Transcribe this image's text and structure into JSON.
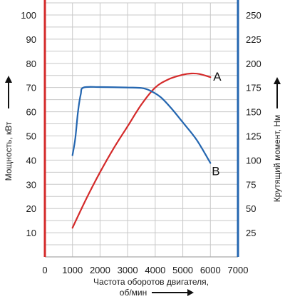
{
  "chart_data": {
    "type": "line",
    "xlabel_line1": "Частота оборотов двигателя,",
    "xlabel_line2": "об/мин",
    "ylabel_left": "Мощность, кВт",
    "ylabel_right": "Крутящий момент, Нм",
    "x_ticks": [
      "0",
      "1000",
      "2000",
      "3000",
      "4000",
      "5000",
      "6000",
      "7000"
    ],
    "y_left_ticks": [
      "10",
      "20",
      "30",
      "40",
      "50",
      "60",
      "70",
      "80",
      "90",
      "100"
    ],
    "y_right_ticks": [
      "25",
      "50",
      "75",
      "100",
      "125",
      "150",
      "175",
      "200",
      "225",
      "250"
    ],
    "xlim": [
      0,
      7000
    ],
    "ylim_left": [
      0,
      105
    ],
    "ylim_right": [
      0,
      262.5
    ],
    "grid": true,
    "colors": {
      "power": "#d42a2a",
      "torque": "#2466b0",
      "left_axis": "#d42a2a",
      "right_axis": "#2466b0",
      "grid": "#c8c8c8"
    },
    "series": [
      {
        "label": "A",
        "axis": "left",
        "color": "#d42a2a",
        "x": [
          1000,
          1500,
          2000,
          2500,
          3000,
          3500,
          4000,
          4500,
          5000,
          5300,
          5600,
          6000
        ],
        "y": [
          12,
          24,
          35,
          45,
          54,
          63,
          70,
          73.5,
          75.3,
          75.8,
          75.6,
          74.3
        ]
      },
      {
        "label": "B",
        "axis": "right",
        "color": "#2466b0",
        "x": [
          1000,
          1100,
          1200,
          1300,
          1400,
          2000,
          3000,
          3500,
          3800,
          4200,
          4600,
          5000,
          5500,
          6000
        ],
        "y": [
          105,
          122,
          150,
          168,
          175,
          175.5,
          175,
          174.5,
          172,
          165,
          153,
          139,
          121,
          97
        ]
      }
    ]
  }
}
